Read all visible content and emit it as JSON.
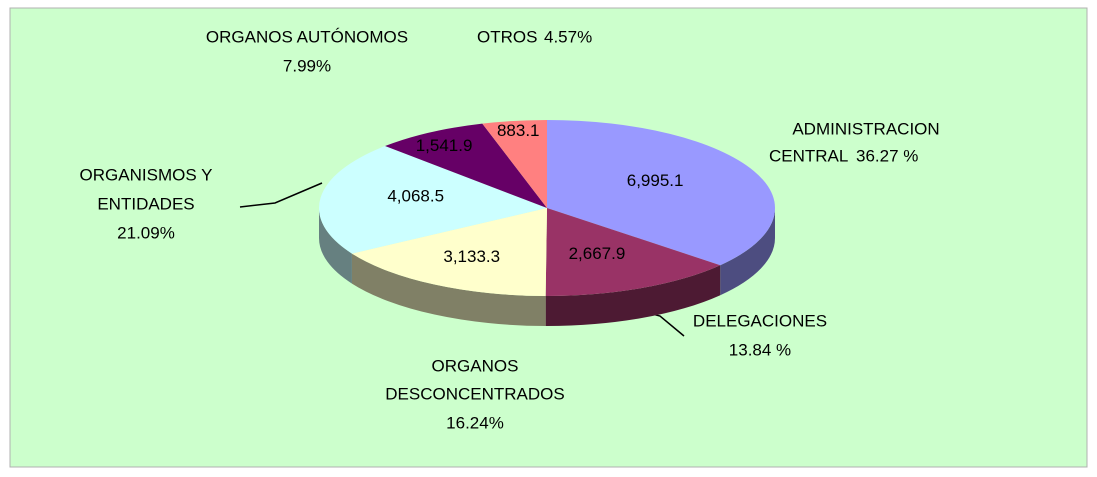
{
  "chart_data": {
    "type": "pie",
    "categories": [
      [
        "ADMINISTRACION",
        "CENTRAL"
      ],
      [
        "DELEGACIONES"
      ],
      [
        "ORGANOS",
        "DESCONCENTRADOS"
      ],
      [
        "ORGANISMOS Y",
        "ENTIDADES"
      ],
      [
        "ORGANOS AUTÓNOMOS"
      ],
      [
        "OTROS"
      ]
    ],
    "percent_labels": [
      "36.27 %",
      "13.84 %",
      "16.24%",
      "21.09%",
      "7.99%",
      "4.57%"
    ],
    "values": [
      6995.1,
      2667.9,
      3133.3,
      4068.5,
      1541.9,
      883.1
    ],
    "value_labels": [
      "6,995.1",
      "2,667.9",
      "3,133.3",
      "4,068.5",
      "1,541.9",
      "883.1"
    ],
    "colors": [
      "#9999ff",
      "#993366",
      "#ffffcc",
      "#ccffff",
      "#660066",
      "#ff8080"
    ],
    "side_colors": [
      "#4d4d80",
      "#4d1a33",
      "#808066",
      "#668080",
      "#330033",
      "#804040"
    ]
  }
}
